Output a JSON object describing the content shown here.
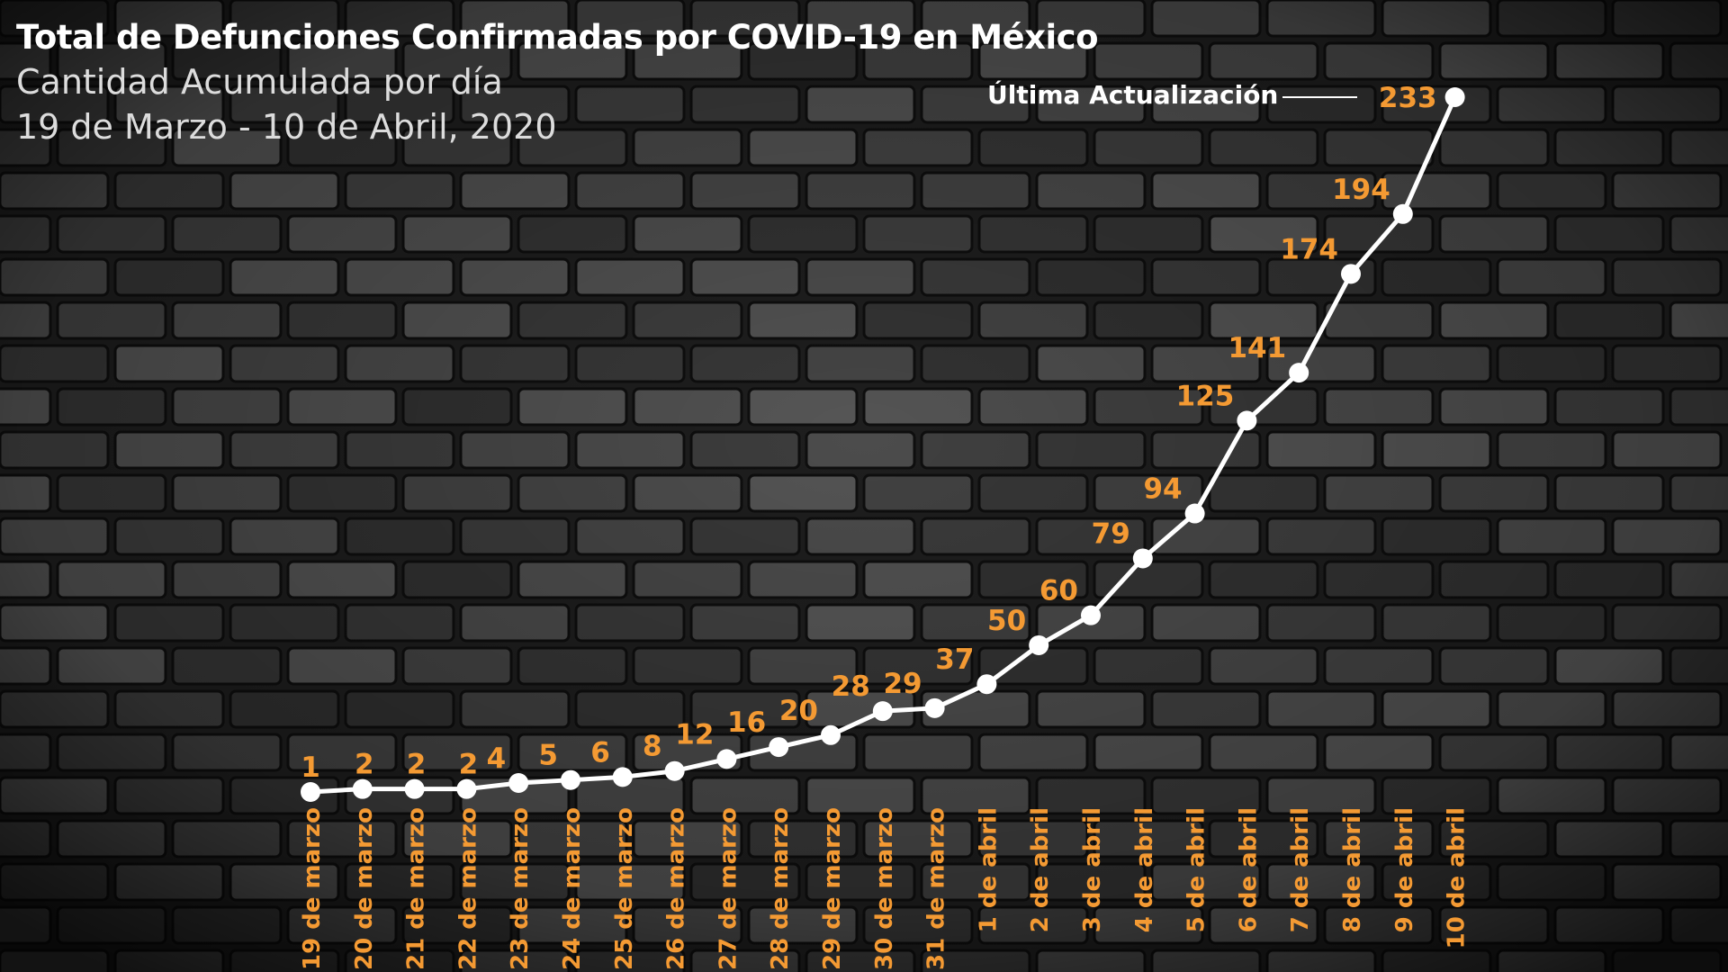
{
  "header": {
    "title": "Total de Defunciones Confirmadas por COVID-19 en México",
    "subtitle_line1": "Cantidad Acumulada por día",
    "subtitle_line2": "19 de Marzo - 10 de Abril, 2020"
  },
  "annotation": {
    "label": "Última Actualización",
    "points_to": "10 de abril"
  },
  "colors": {
    "line": "#ffffff",
    "marker": "#ffffff",
    "value_label": "#f49a33",
    "tick_label": "#f49a33",
    "annotation": "#ffffff",
    "title": "#ffffff"
  },
  "chart_data": {
    "type": "line",
    "title": "Total de Defunciones Confirmadas por COVID-19 en México",
    "subtitle": "Cantidad Acumulada por día",
    "xlabel": "",
    "ylabel": "",
    "grid": false,
    "legend": "none",
    "ylim": [
      1,
      233
    ],
    "categories": [
      "19 de marzo",
      "20 de marzo",
      "21 de marzo",
      "22 de marzo",
      "23 de marzo",
      "24 de marzo",
      "25 de marzo",
      "26 de marzo",
      "27 de marzo",
      "28 de marzo",
      "29 de marzo",
      "30 de marzo",
      "31 de marzo",
      "1 de abril",
      "2 de abril",
      "3 de abril",
      "4 de abril",
      "5 de abril",
      "6 de abril",
      "7 de abril",
      "8 de abril",
      "9 de abril",
      "10 de abril"
    ],
    "series": [
      {
        "values": [
          1,
          2,
          2,
          2,
          4,
          5,
          6,
          8,
          12,
          16,
          20,
          28,
          29,
          37,
          50,
          60,
          79,
          94,
          125,
          141,
          174,
          194,
          233
        ],
        "labels": [
          "1",
          "2",
          "2",
          "2",
          "4",
          "5",
          "6",
          "8",
          "12",
          "16",
          "20",
          "28",
          "29",
          "37",
          "50",
          "60",
          "79",
          "94",
          "125",
          "141",
          "174",
          "194",
          "233"
        ]
      }
    ]
  }
}
